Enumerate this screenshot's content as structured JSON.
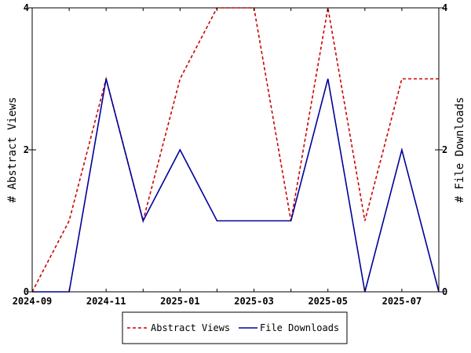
{
  "chart_data": {
    "type": "line",
    "x": [
      "2024-09",
      "2024-10",
      "2024-11",
      "2024-12",
      "2025-01",
      "2025-02",
      "2025-03",
      "2025-04",
      "2025-05",
      "2025-06",
      "2025-07",
      "2025-08"
    ],
    "x_tick_labels": [
      "2024-09",
      "2024-11",
      "2025-01",
      "2025-03",
      "2025-05",
      "2025-07"
    ],
    "y_ticks": [
      0,
      2,
      4
    ],
    "ylim": [
      0,
      4
    ],
    "ylabel_left": "# Abstract Views",
    "ylabel_right": "# File Downloads",
    "series": [
      {
        "name": "Abstract Views",
        "axis": "left",
        "color": "#cc0000",
        "dash": "dashed",
        "values": [
          0,
          1,
          3,
          1,
          3,
          4,
          4,
          1,
          4,
          1,
          3,
          3
        ]
      },
      {
        "name": "File Downloads",
        "axis": "right",
        "color": "#000099",
        "dash": "solid",
        "values": [
          0,
          0,
          3,
          1,
          2,
          1,
          1,
          1,
          3,
          0,
          2,
          0
        ]
      }
    ],
    "legend_position": "bottom-center",
    "grid": false
  }
}
